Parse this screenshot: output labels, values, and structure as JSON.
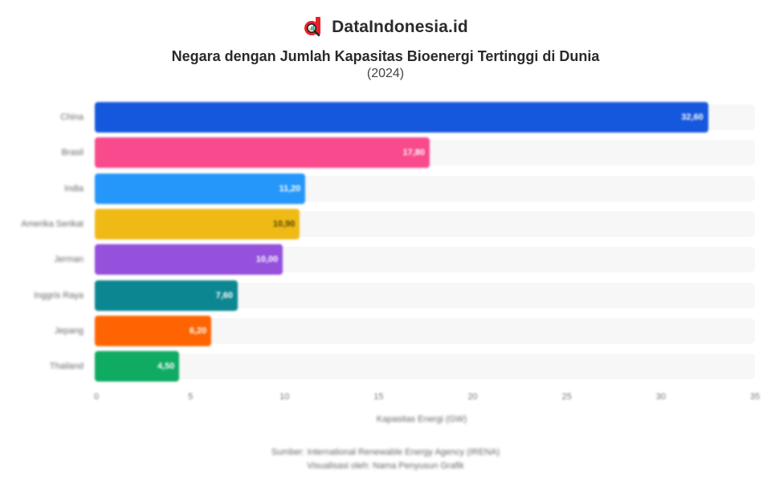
{
  "brand": {
    "name": "DataIndonesia.id",
    "logo_color": "#e8222b",
    "icon": "magnifier-chart-logo-icon"
  },
  "header": {
    "title": "Negara dengan Jumlah Kapasitas Bioenergi Tertinggi di Dunia",
    "subtitle": "(2024)"
  },
  "footer": {
    "source": "Sumber: International Renewable Energy Agency (IRENA)",
    "credit": "Visualisasi oleh: Nama Penyusun Grafik"
  },
  "chart_data": {
    "type": "bar",
    "orientation": "horizontal",
    "title": "Negara dengan Jumlah Kapasitas Bioenergi Tertinggi di Dunia",
    "subtitle": "(2024)",
    "xlabel": "Kapasitas Energi (GW)",
    "ylabel": "",
    "xlim": [
      0,
      35
    ],
    "x_ticks": [
      "0",
      "5",
      "10",
      "15",
      "20",
      "25",
      "30",
      "35"
    ],
    "grid": false,
    "legend": "none",
    "categories": [
      "China",
      "Brasil",
      "India",
      "Amerika Serikat",
      "Jerman",
      "Inggris Raya",
      "Jepang",
      "Thailand"
    ],
    "values": [
      32.6,
      17.8,
      11.2,
      10.9,
      10.0,
      7.6,
      6.2,
      4.5
    ],
    "value_labels": [
      "32,60",
      "17,80",
      "11,20",
      "10,90",
      "10,00",
      "7,60",
      "6,20",
      "4,50"
    ],
    "colors": [
      "#1658dd",
      "#f84a8c",
      "#2597fb",
      "#f0ba16",
      "#9550dc",
      "#0c8792",
      "#fe6502",
      "#10ab63"
    ],
    "label_colors": [
      "#ffffff",
      "#ffffff",
      "#ffffff",
      "#5a4600",
      "#ffffff",
      "#ffffff",
      "#ffffff",
      "#ffffff"
    ]
  }
}
